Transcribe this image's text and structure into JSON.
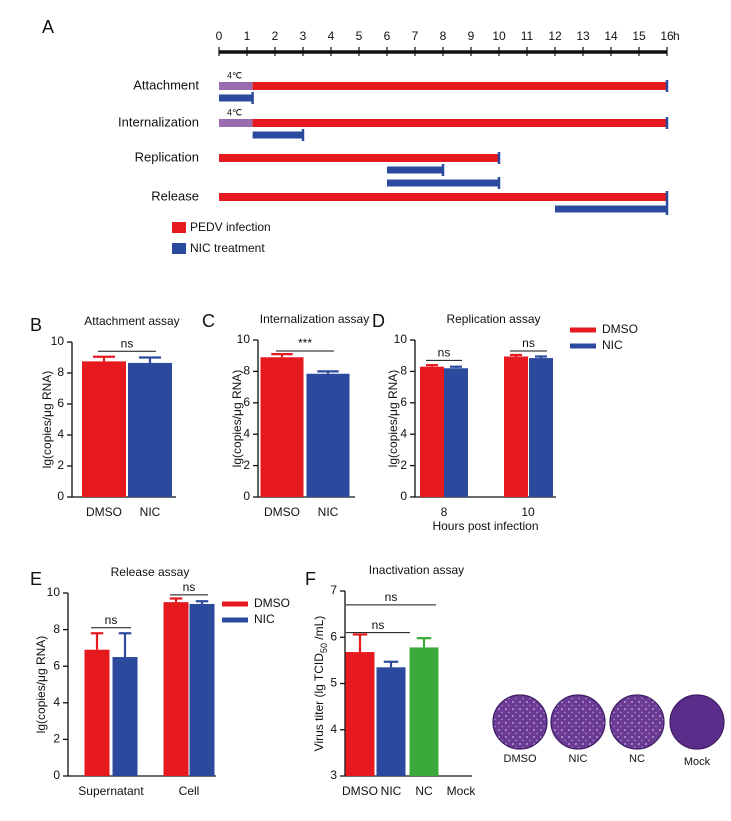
{
  "chart_data": [
    {
      "type": "timeline",
      "panel": "A",
      "xlim": [
        0,
        16
      ],
      "xticks": [
        0,
        1,
        2,
        3,
        4,
        5,
        6,
        7,
        8,
        9,
        10,
        11,
        12,
        13,
        14,
        15,
        16
      ],
      "x_unit": "h",
      "rows": [
        {
          "label": "Attachment",
          "bars": [
            {
              "start": 0,
              "end": 1.2,
              "color": "#9b6bb0",
              "label": "4℃"
            },
            {
              "start": 1.2,
              "end": 16,
              "color": "#e5191e"
            }
          ],
          "treatments": [
            {
              "start": 0,
              "end": 1.2
            }
          ]
        },
        {
          "label": "Internalization",
          "bars": [
            {
              "start": 0,
              "end": 1.2,
              "color": "#9b6bb0",
              "label": "4℃"
            },
            {
              "start": 1.2,
              "end": 16,
              "color": "#e5191e"
            }
          ],
          "treatments": [
            {
              "start": 1.2,
              "end": 3
            }
          ]
        },
        {
          "label": "Replication",
          "bars": [
            {
              "start": 0,
              "end": 10,
              "color": "#e5191e"
            }
          ],
          "treatments": [
            {
              "start": 6,
              "end": 8
            },
            {
              "start": 6,
              "end": 10
            }
          ]
        },
        {
          "label": "Release",
          "bars": [
            {
              "start": 0,
              "end": 16,
              "color": "#e5191e"
            }
          ],
          "treatments": [
            {
              "start": 12,
              "end": 16
            }
          ]
        }
      ],
      "legend": [
        {
          "name": "PEDV infection",
          "color": "#e5191e"
        },
        {
          "name": "NIC treatment",
          "color": "#2b4a9e"
        }
      ]
    },
    {
      "type": "bar",
      "panel": "B",
      "title": "Attachment assay",
      "y_label": "lg(copies/μg RNA)",
      "categories": [
        "DMSO",
        "NIC"
      ],
      "values": [
        8.75,
        8.65
      ],
      "errors": [
        0.3,
        0.35
      ],
      "colors": [
        "#e5191e",
        "#2b4a9e"
      ],
      "ylim": [
        0,
        10
      ],
      "yticks": [
        0,
        2,
        4,
        6,
        8,
        10
      ],
      "annotations": [
        "ns"
      ]
    },
    {
      "type": "bar",
      "panel": "C",
      "title": "Internalization assay",
      "y_label": "lg(copies/μg RNA)",
      "categories": [
        "DMSO",
        "NIC"
      ],
      "values": [
        8.9,
        7.85
      ],
      "errors": [
        0.2,
        0.15
      ],
      "colors": [
        "#e5191e",
        "#2b4a9e"
      ],
      "ylim": [
        0,
        10
      ],
      "yticks": [
        0,
        2,
        4,
        6,
        8,
        10
      ],
      "annotations": [
        "***"
      ]
    },
    {
      "type": "bar",
      "panel": "D",
      "title": "Replication assay",
      "y_label": "lg(copies/μg RNA)",
      "x_label": "Hours post infection",
      "categories": [
        "8",
        "10"
      ],
      "series": [
        {
          "name": "DMSO",
          "color": "#e5191e",
          "values": [
            8.3,
            8.95
          ],
          "errors": [
            0.1,
            0.1
          ]
        },
        {
          "name": "NIC",
          "color": "#2b4a9e",
          "values": [
            8.2,
            8.85
          ],
          "errors": [
            0.1,
            0.1
          ]
        }
      ],
      "ylim": [
        0,
        10
      ],
      "yticks": [
        0,
        2,
        4,
        6,
        8,
        10
      ],
      "annotations": [
        "ns",
        "ns"
      ]
    },
    {
      "type": "bar",
      "panel": "E",
      "title": "Release assay",
      "y_label": "lg(copies/μg RNA)",
      "categories": [
        "Supernatant",
        "Cell"
      ],
      "series": [
        {
          "name": "DMSO",
          "color": "#e5191e",
          "values": [
            6.9,
            9.5
          ],
          "errors": [
            0.9,
            0.2
          ]
        },
        {
          "name": "NIC",
          "color": "#2b4a9e",
          "values": [
            6.5,
            9.4
          ],
          "errors": [
            1.3,
            0.15
          ]
        }
      ],
      "ylim": [
        0,
        10
      ],
      "yticks": [
        0,
        2,
        4,
        6,
        8,
        10
      ],
      "annotations": [
        "ns",
        "ns"
      ]
    },
    {
      "type": "bar",
      "panel": "F",
      "title": "Inactivation assay",
      "y_label": [
        "Virus titer (lg TCID",
        "50",
        " /mL)"
      ],
      "categories": [
        "DMSO",
        "NIC",
        "NC",
        "Mock"
      ],
      "values": [
        5.68,
        5.35,
        5.78,
        null
      ],
      "errors": [
        0.38,
        0.12,
        0.2,
        null
      ],
      "colors": [
        "#e5191e",
        "#2b4a9e",
        "#3aab3a",
        "#888888"
      ],
      "ylim": [
        3,
        7
      ],
      "yticks": [
        3,
        4,
        5,
        6,
        7
      ],
      "annotations": [
        "ns",
        "ns"
      ],
      "plates": [
        "DMSO",
        "NIC",
        "NC",
        "Mock"
      ]
    }
  ]
}
